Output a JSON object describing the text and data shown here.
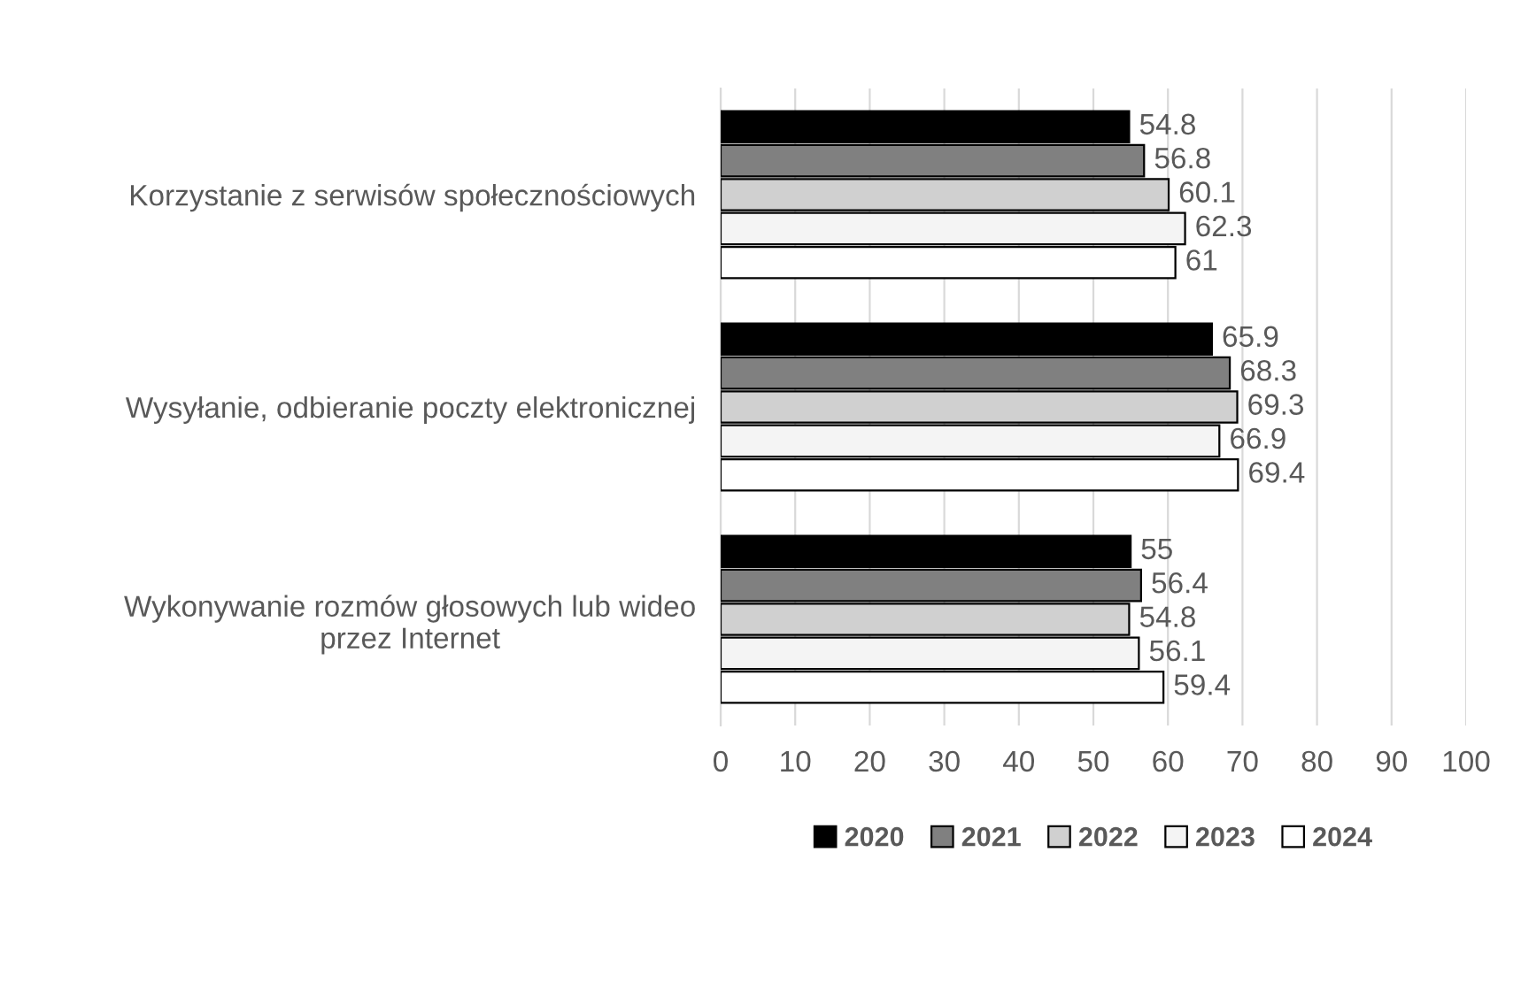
{
  "chart_data": {
    "type": "bar",
    "orientation": "horizontal",
    "categories": [
      "Korzystanie z serwisów społecznościowych",
      "Wysyłanie, odbieranie poczty elektronicznej",
      "Wykonywanie rozmów głosowych lub wideo\nprzez Internet"
    ],
    "series": [
      {
        "name": "2020",
        "color": "#000000",
        "values": [
          54.8,
          65.9,
          55
        ]
      },
      {
        "name": "2021",
        "color": "#808080",
        "values": [
          56.8,
          68.3,
          56.4
        ]
      },
      {
        "name": "2022",
        "color": "#d0d0d0",
        "values": [
          60.1,
          69.3,
          54.8
        ]
      },
      {
        "name": "2023",
        "color": "#f4f4f4",
        "values": [
          62.3,
          66.9,
          56.1
        ]
      },
      {
        "name": "2024",
        "color": "#ffffff",
        "values": [
          61,
          69.4,
          59.4
        ]
      }
    ],
    "xlim": [
      0,
      100
    ],
    "xticks": [
      0,
      10,
      20,
      30,
      40,
      50,
      60,
      70,
      80,
      90,
      100
    ],
    "grid": "x",
    "legend": "bottom",
    "data_labels": true
  }
}
